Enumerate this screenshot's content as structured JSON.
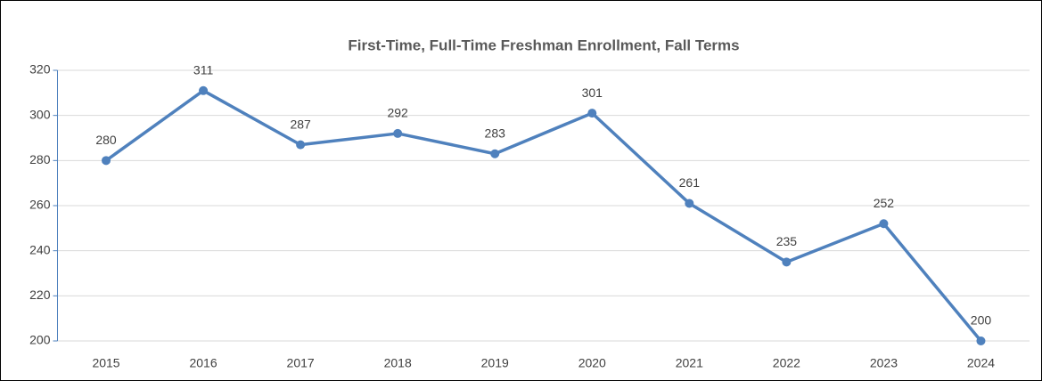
{
  "chart_data": {
    "type": "line",
    "title": "First-Time, Full-Time Freshman Enrollment, Fall Terms",
    "categories": [
      "2015",
      "2016",
      "2017",
      "2018",
      "2019",
      "2020",
      "2021",
      "2022",
      "2023",
      "2024"
    ],
    "values": [
      280,
      311,
      287,
      292,
      283,
      301,
      261,
      235,
      252,
      200
    ],
    "color": "#4f81bd",
    "ylim": [
      200,
      320
    ],
    "yticks": [
      200,
      220,
      240,
      260,
      280,
      300,
      320
    ],
    "grid": true
  }
}
